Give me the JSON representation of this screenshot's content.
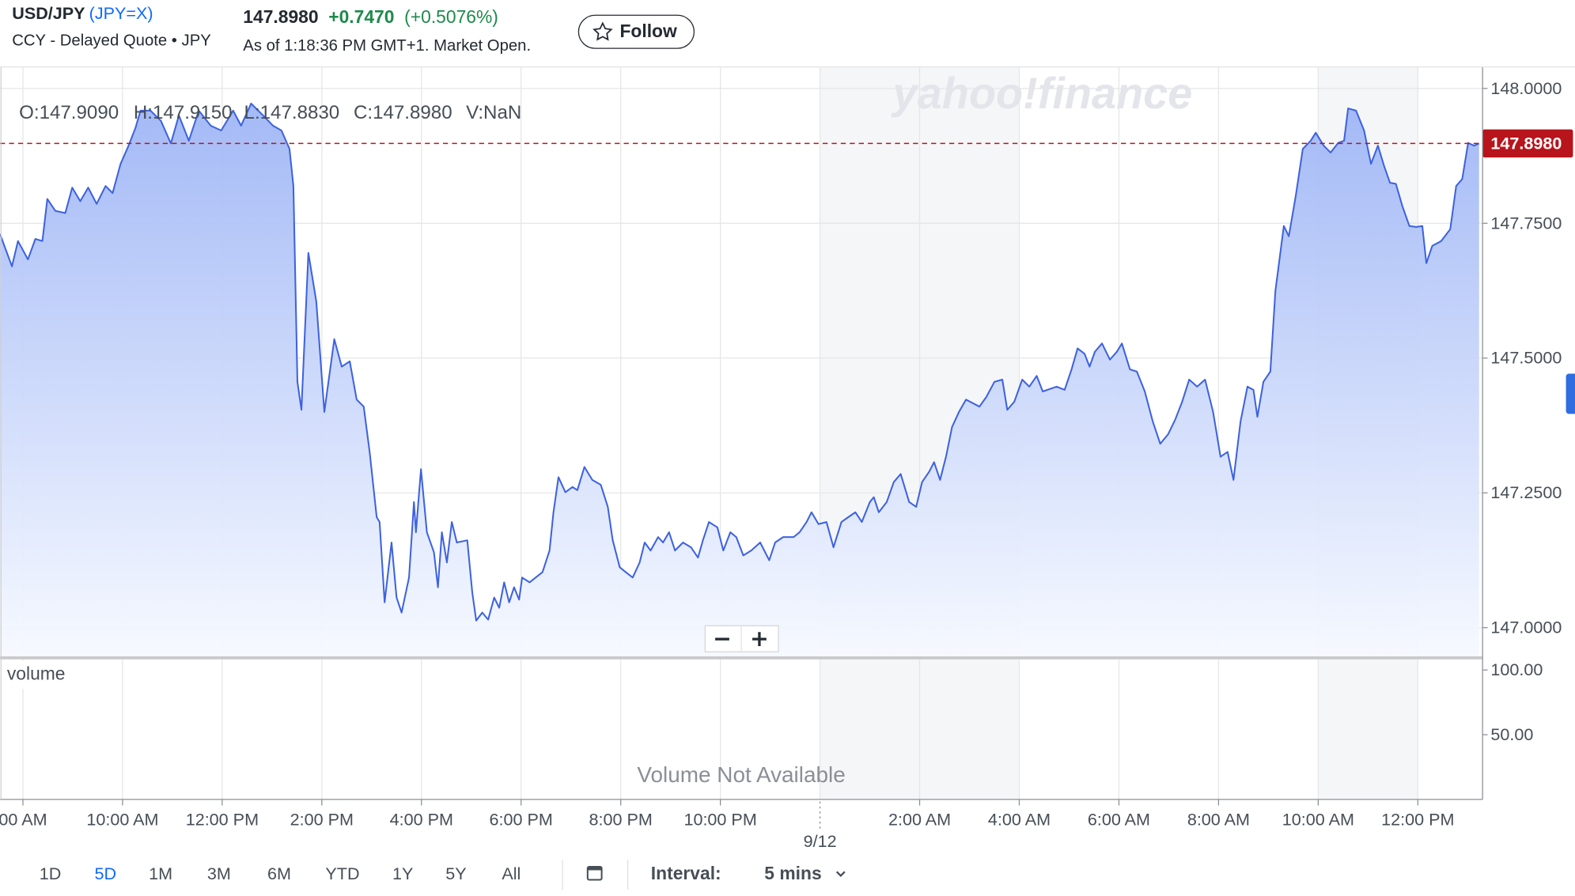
{
  "header": {
    "symbol": "USD/JPY",
    "symbol_code": "(JPY=X)",
    "subtitle": "CCY - Delayed Quote • JPY",
    "price": "147.8980",
    "change": "+0.7470",
    "change_percent": "(+0.5076%)",
    "as_of": "As of 1:18:36 PM GMT+1. Market Open.",
    "follow": "Follow"
  },
  "watermark": "yahoo!finance",
  "ohlc": [
    "O:147.9090",
    "H:147.9150",
    "L:147.8830",
    "C:147.8980",
    "V:NaN"
  ],
  "chart_data": {
    "type": "line",
    "color": "#3d62e0",
    "grid": true,
    "last_price": {
      "value": 147.898,
      "label": "147.8980",
      "color": "#b8141c"
    },
    "bands": [
      [
        16,
        20
      ],
      [
        26,
        28
      ]
    ],
    "xlim": [
      -0.46,
      29.3
    ],
    "ylim": [
      146.944,
      148.039
    ],
    "yticks": [
      {
        "value": 148,
        "label": "148.0000"
      },
      {
        "value": 147.75,
        "label": "147.7500"
      },
      {
        "value": 147.5,
        "label": "147.5000"
      },
      {
        "value": 147.25,
        "label": "147.2500"
      },
      {
        "value": 147,
        "label": "147.0000"
      }
    ],
    "xticks": [
      {
        "value": 0,
        "label": "00 AM"
      },
      {
        "value": 2,
        "label": "10:00 AM"
      },
      {
        "value": 4,
        "label": "12:00 PM"
      },
      {
        "value": 6,
        "label": "2:00 PM"
      },
      {
        "value": 8,
        "label": "4:00 PM"
      },
      {
        "value": 10,
        "label": "6:00 PM"
      },
      {
        "value": 12,
        "label": "8:00 PM"
      },
      {
        "value": 14,
        "label": "10:00 PM"
      },
      {
        "value": 18,
        "label": "2:00 AM"
      },
      {
        "value": 20,
        "label": "4:00 AM"
      },
      {
        "value": 22,
        "label": "6:00 AM"
      },
      {
        "value": 24,
        "label": "8:00 AM"
      },
      {
        "value": 26,
        "label": "10:00 AM"
      },
      {
        "value": 28,
        "label": "12:00 PM"
      }
    ],
    "date_ticks": [
      {
        "value": 16,
        "label": "9/12"
      }
    ],
    "x": [
      -0.46,
      -0.22,
      -0.1,
      0.1,
      0.25,
      0.39,
      0.49,
      0.65,
      0.85,
      0.99,
      1.15,
      1.31,
      1.48,
      1.66,
      1.8,
      1.96,
      2.12,
      2.26,
      2.36,
      2.56,
      2.77,
      2.97,
      3.13,
      3.33,
      3.53,
      3.77,
      3.98,
      4.22,
      4.38,
      4.58,
      4.82,
      5.02,
      5.19,
      5.35,
      5.43,
      5.51,
      5.59,
      5.73,
      5.89,
      6.05,
      6.25,
      6.4,
      6.56,
      6.7,
      6.84,
      6.96,
      7.1,
      7.16,
      7.26,
      7.4,
      7.5,
      7.6,
      7.75,
      7.85,
      7.89,
      7.99,
      8.11,
      8.25,
      8.33,
      8.41,
      8.51,
      8.61,
      8.71,
      8.92,
      9.02,
      9.1,
      9.22,
      9.34,
      9.46,
      9.56,
      9.66,
      9.76,
      9.86,
      9.96,
      10.02,
      10.17,
      10.43,
      10.57,
      10.65,
      10.75,
      10.89,
      11.03,
      11.13,
      11.27,
      11.43,
      11.6,
      11.74,
      11.84,
      11.98,
      12.1,
      12.24,
      12.38,
      12.48,
      12.6,
      12.75,
      12.85,
      12.97,
      13.09,
      13.25,
      13.41,
      13.55,
      13.65,
      13.77,
      13.94,
      14.06,
      14.2,
      14.32,
      14.46,
      14.62,
      14.8,
      14.98,
      15.1,
      15.26,
      15.47,
      15.59,
      15.73,
      15.83,
      15.97,
      16.13,
      16.27,
      16.43,
      16.57,
      16.71,
      16.84,
      17.0,
      17.08,
      17.18,
      17.34,
      17.48,
      17.62,
      17.79,
      17.93,
      18.05,
      18.19,
      18.29,
      18.41,
      18.53,
      18.65,
      18.79,
      18.93,
      19.2,
      19.34,
      19.5,
      19.66,
      19.76,
      19.9,
      20.06,
      20.2,
      20.35,
      20.47,
      20.75,
      20.91,
      21.05,
      21.17,
      21.31,
      21.41,
      21.52,
      21.66,
      21.82,
      21.96,
      22.06,
      22.22,
      22.36,
      22.52,
      22.68,
      22.83,
      22.99,
      23.13,
      23.27,
      23.41,
      23.57,
      23.73,
      23.89,
      24.04,
      24.18,
      24.3,
      24.44,
      24.58,
      24.7,
      24.78,
      24.9,
      25.04,
      25.14,
      25.31,
      25.41,
      25.55,
      25.69,
      25.85,
      25.95,
      26.11,
      26.25,
      26.4,
      26.52,
      26.6,
      26.76,
      26.92,
      27.06,
      27.2,
      27.32,
      27.44,
      27.56,
      27.69,
      27.83,
      27.97,
      28.09,
      28.17,
      28.29,
      28.47,
      28.65,
      28.77,
      28.89,
      29.01,
      29.13,
      29.23
    ],
    "series": [
      {
        "name": "USD/JPY",
        "color": "#3d62e0",
        "values": [
          147.73,
          147.67,
          147.717,
          147.683,
          147.721,
          147.717,
          147.795,
          147.773,
          147.769,
          147.816,
          147.791,
          147.816,
          147.786,
          147.819,
          147.806,
          147.86,
          147.894,
          147.927,
          147.959,
          147.959,
          147.94,
          147.898,
          147.95,
          147.903,
          147.959,
          147.931,
          147.922,
          147.959,
          147.931,
          147.972,
          147.95,
          147.931,
          147.922,
          147.888,
          147.819,
          147.456,
          147.404,
          147.695,
          147.605,
          147.4,
          147.535,
          147.484,
          147.494,
          147.423,
          147.41,
          147.326,
          147.205,
          147.196,
          147.047,
          147.158,
          147.056,
          147.028,
          147.093,
          147.233,
          147.177,
          147.294,
          147.177,
          147.14,
          147.075,
          147.177,
          147.121,
          147.196,
          147.158,
          147.162,
          147.065,
          147.013,
          147.028,
          147.015,
          147.056,
          147.037,
          147.084,
          147.047,
          147.075,
          147.052,
          147.093,
          147.084,
          147.103,
          147.143,
          147.214,
          147.279,
          147.251,
          147.261,
          147.255,
          147.298,
          147.274,
          147.265,
          147.224,
          147.162,
          147.112,
          147.103,
          147.093,
          147.121,
          147.158,
          147.143,
          147.168,
          147.158,
          147.177,
          147.143,
          147.158,
          147.149,
          147.13,
          147.162,
          147.196,
          147.186,
          147.143,
          147.177,
          147.168,
          147.134,
          147.143,
          147.158,
          147.125,
          147.158,
          147.168,
          147.168,
          147.177,
          147.196,
          147.214,
          147.192,
          147.196,
          147.149,
          147.196,
          147.205,
          147.214,
          147.196,
          147.233,
          147.242,
          147.214,
          147.233,
          147.27,
          147.285,
          147.233,
          147.224,
          147.27,
          147.289,
          147.307,
          147.274,
          147.317,
          147.372,
          147.4,
          147.423,
          147.41,
          147.428,
          147.456,
          147.46,
          147.404,
          147.419,
          147.46,
          147.447,
          147.467,
          147.438,
          147.447,
          147.441,
          147.479,
          147.518,
          147.508,
          147.484,
          147.512,
          147.527,
          147.497,
          147.512,
          147.527,
          147.479,
          147.475,
          147.438,
          147.382,
          147.341,
          147.359,
          147.386,
          147.419,
          147.46,
          147.447,
          147.46,
          147.4,
          147.317,
          147.326,
          147.274,
          147.382,
          147.447,
          147.441,
          147.391,
          147.456,
          147.475,
          147.624,
          147.745,
          147.726,
          147.801,
          147.888,
          147.903,
          147.918,
          147.894,
          147.881,
          147.899,
          147.903,
          147.963,
          147.959,
          147.922,
          147.86,
          147.894,
          147.857,
          147.825,
          147.823,
          147.782,
          147.745,
          147.743,
          147.745,
          147.676,
          147.708,
          147.717,
          147.739,
          147.819,
          147.832,
          147.899,
          147.894,
          147.898
        ]
      }
    ]
  },
  "volume_panel": {
    "label": "volume",
    "message": "Volume Not Available",
    "ylim": [
      0,
      107.8
    ],
    "yticks": [
      {
        "value": 100,
        "label": "100.00"
      },
      {
        "value": 50,
        "label": "50.00"
      }
    ]
  },
  "toolbar": {
    "ranges": [
      "1D",
      "5D",
      "1M",
      "3M",
      "6M",
      "YTD",
      "1Y",
      "5Y",
      "All"
    ],
    "selected": 1,
    "interval_label": "Interval:",
    "interval": "5 mins"
  }
}
